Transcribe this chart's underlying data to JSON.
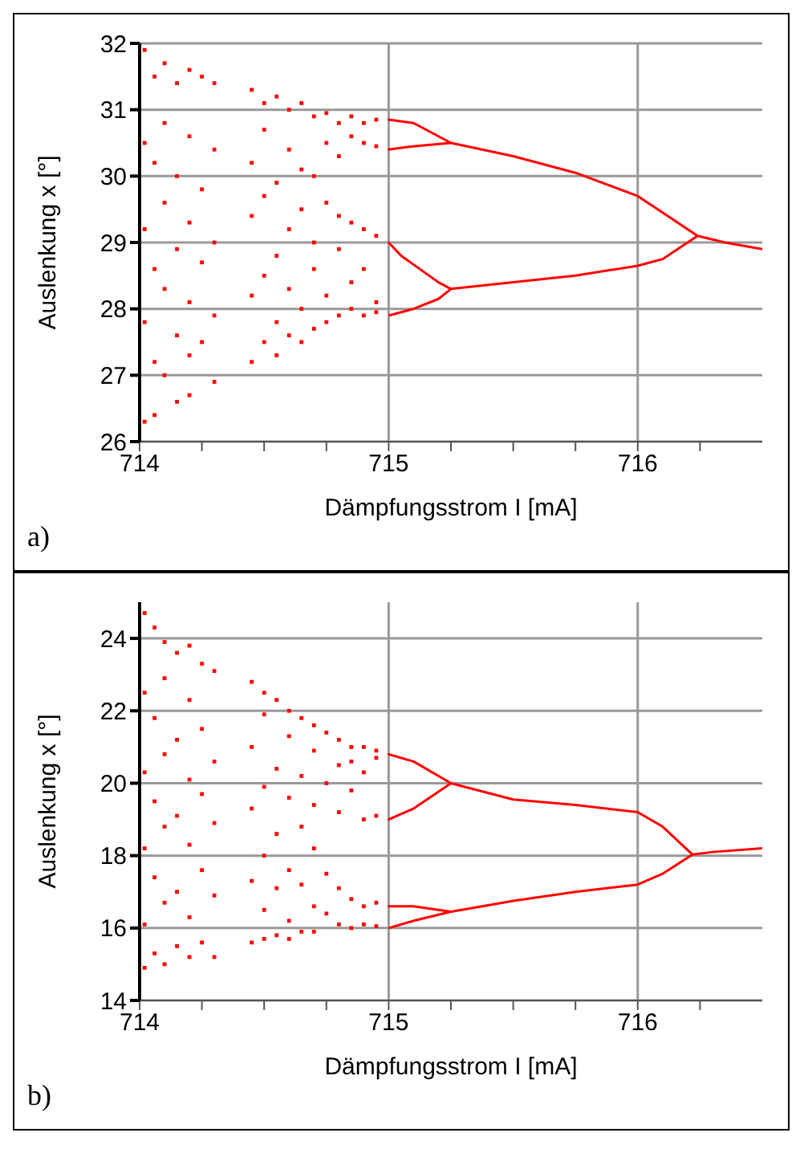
{
  "chart_data": [
    {
      "type": "scatter",
      "xlabel": "Dämpfungsstrom I [mA]",
      "ylabel": "Auslenkung x [°]",
      "annotations": [
        "a)"
      ],
      "grid": true,
      "xlim": [
        714,
        716.5
      ],
      "xticks": [
        714,
        {
          "value": 714.25,
          "label": null
        },
        {
          "value": 714.5,
          "label": null
        },
        {
          "value": 714.75,
          "label": null
        },
        715,
        {
          "value": 715.25,
          "label": null
        },
        {
          "value": 715.5,
          "label": null
        },
        {
          "value": 715.75,
          "label": null
        },
        716,
        {
          "value": 716.25,
          "label": null
        }
      ],
      "ylim": [
        26,
        32
      ],
      "yticks": [
        26,
        27,
        28,
        29,
        30,
        31,
        32
      ],
      "series": [
        {
          "marker": "square",
          "color": "#ff0000",
          "x": [
            714.02,
            714.02,
            714.02,
            714.02,
            714.02,
            714.06,
            714.06,
            714.06,
            714.06,
            714.06,
            714.1,
            714.1,
            714.1,
            714.1,
            714.1,
            714.15,
            714.15,
            714.15,
            714.15,
            714.15,
            714.2,
            714.2,
            714.2,
            714.2,
            714.2,
            714.2,
            714.25,
            714.25,
            714.25,
            714.25,
            714.3,
            714.3,
            714.3,
            714.3,
            714.3,
            714.45,
            714.45,
            714.45,
            714.45,
            714.45,
            714.5,
            714.5,
            714.5,
            714.5,
            714.5,
            714.55,
            714.55,
            714.55,
            714.55,
            714.55,
            714.6,
            714.6,
            714.6,
            714.6,
            714.6,
            714.65,
            714.65,
            714.65,
            714.65,
            714.65,
            714.7,
            714.7,
            714.7,
            714.7,
            714.7,
            714.75,
            714.75,
            714.75,
            714.75,
            714.75,
            714.8,
            714.8,
            714.8,
            714.8,
            714.8,
            714.85,
            714.85,
            714.85,
            714.85,
            714.85,
            714.9,
            714.9,
            714.9,
            714.9,
            714.9,
            714.95,
            714.95,
            714.95,
            714.95,
            714.95
          ],
          "values": [
            31.9,
            30.5,
            29.2,
            27.8,
            26.3,
            31.5,
            30.2,
            28.6,
            27.2,
            26.4,
            31.7,
            30.8,
            29.6,
            28.3,
            27.0,
            31.4,
            30.0,
            28.9,
            27.6,
            26.6,
            31.6,
            30.6,
            29.3,
            28.1,
            27.3,
            26.7,
            31.5,
            29.8,
            28.7,
            27.5,
            31.4,
            30.4,
            29.0,
            27.9,
            26.9,
            31.3,
            30.2,
            29.4,
            28.2,
            27.2,
            31.1,
            30.7,
            29.7,
            28.5,
            27.5,
            31.2,
            29.9,
            28.8,
            27.8,
            27.3,
            31.0,
            30.4,
            29.2,
            28.3,
            27.6,
            31.1,
            30.1,
            29.5,
            28.0,
            27.5,
            30.9,
            30.0,
            29.0,
            28.6,
            27.7,
            30.95,
            30.5,
            29.6,
            28.2,
            27.8,
            30.8,
            30.3,
            29.4,
            28.9,
            27.9,
            30.9,
            30.6,
            29.3,
            28.4,
            28.0,
            30.8,
            30.5,
            29.2,
            28.6,
            27.9,
            30.85,
            30.45,
            29.1,
            28.1,
            27.95
          ]
        },
        {
          "type": "line",
          "marker": "none",
          "color": "#ff0000",
          "x": [
            716.5,
            716.35,
            716.24,
            716.1,
            716.0,
            715.75,
            715.5,
            715.25,
            715.1,
            715.0,
            715.1,
            715.25,
            715.1,
            715.0,
            715.1,
            715.25,
            715.5,
            715.75,
            716.0,
            716.1,
            716.24,
            716.1,
            716.0,
            715.75,
            715.5,
            715.25,
            715.2,
            715.05,
            715.0,
            715.05,
            715.2,
            715.25,
            715.2,
            715.1,
            715.0
          ],
          "values": [
            28.9,
            29.0,
            29.1,
            29.45,
            29.7,
            30.05,
            30.3,
            30.5,
            30.8,
            30.85,
            30.8,
            30.5,
            30.45,
            30.4,
            30.45,
            30.5,
            30.3,
            30.05,
            29.7,
            29.45,
            29.1,
            28.75,
            28.65,
            28.5,
            28.4,
            28.3,
            28.4,
            28.8,
            29.0,
            28.8,
            28.4,
            28.3,
            28.15,
            28.0,
            27.9
          ]
        }
      ]
    },
    {
      "type": "scatter",
      "xlabel": "Dämpfungsstrom I [mA]",
      "ylabel": "Auslenkung x [°]",
      "annotations": [
        "b)"
      ],
      "grid": true,
      "xlim": [
        714,
        716.5
      ],
      "xticks": [
        714,
        {
          "value": 714.25,
          "label": null
        },
        {
          "value": 714.5,
          "label": null
        },
        {
          "value": 714.75,
          "label": null
        },
        715,
        {
          "value": 715.25,
          "label": null
        },
        {
          "value": 715.5,
          "label": null
        },
        {
          "value": 715.75,
          "label": null
        },
        716,
        {
          "value": 716.25,
          "label": null
        }
      ],
      "ylim": [
        14,
        25
      ],
      "yticks": [
        14,
        16,
        18,
        20,
        22,
        24
      ],
      "series": [
        {
          "marker": "square",
          "color": "#ff0000",
          "x": [
            714.02,
            714.02,
            714.02,
            714.02,
            714.02,
            714.02,
            714.06,
            714.06,
            714.06,
            714.06,
            714.06,
            714.1,
            714.1,
            714.1,
            714.1,
            714.1,
            714.1,
            714.15,
            714.15,
            714.15,
            714.15,
            714.15,
            714.2,
            714.2,
            714.2,
            714.2,
            714.2,
            714.2,
            714.25,
            714.25,
            714.25,
            714.25,
            714.25,
            714.3,
            714.3,
            714.3,
            714.3,
            714.3,
            714.45,
            714.45,
            714.45,
            714.45,
            714.45,
            714.5,
            714.5,
            714.5,
            714.5,
            714.5,
            714.5,
            714.55,
            714.55,
            714.55,
            714.55,
            714.55,
            714.6,
            714.6,
            714.6,
            714.6,
            714.6,
            714.6,
            714.65,
            714.65,
            714.65,
            714.65,
            714.65,
            714.7,
            714.7,
            714.7,
            714.7,
            714.7,
            714.7,
            714.75,
            714.75,
            714.75,
            714.75,
            714.8,
            714.8,
            714.8,
            714.8,
            714.8,
            714.85,
            714.85,
            714.85,
            714.85,
            714.85,
            714.9,
            714.9,
            714.9,
            714.9,
            714.9,
            714.95,
            714.95,
            714.95,
            714.95,
            714.95
          ],
          "values": [
            24.7,
            22.5,
            20.3,
            18.2,
            16.1,
            14.9,
            24.3,
            21.8,
            19.5,
            17.4,
            15.3,
            23.9,
            22.9,
            20.8,
            18.8,
            16.7,
            15.0,
            23.6,
            21.2,
            19.1,
            17.0,
            15.5,
            23.8,
            22.3,
            20.1,
            18.3,
            16.3,
            15.2,
            23.3,
            21.5,
            19.7,
            17.6,
            15.6,
            23.1,
            20.6,
            18.9,
            16.9,
            15.2,
            22.8,
            21.0,
            19.3,
            17.3,
            15.6,
            22.5,
            21.9,
            19.9,
            18.0,
            16.5,
            15.7,
            22.3,
            20.4,
            18.6,
            17.1,
            15.8,
            22.0,
            21.3,
            19.6,
            17.6,
            16.2,
            15.7,
            21.8,
            20.2,
            18.8,
            17.2,
            15.9,
            21.6,
            20.9,
            19.4,
            18.2,
            16.6,
            15.9,
            21.4,
            20.0,
            17.5,
            16.4,
            21.2,
            20.5,
            19.2,
            17.1,
            16.1,
            21.0,
            20.6,
            19.8,
            16.8,
            16.0,
            21.0,
            20.3,
            19.0,
            16.6,
            16.1,
            20.9,
            20.7,
            19.1,
            16.7,
            16.05
          ]
        },
        {
          "type": "line",
          "marker": "none",
          "color": "#ff0000",
          "x": [
            716.5,
            716.3,
            716.22,
            716.1,
            716.0,
            715.75,
            715.5,
            715.25,
            715.1,
            715.0,
            715.1,
            715.25,
            715.1,
            715.0,
            715.1,
            715.25,
            715.5,
            715.75,
            716.0,
            716.1,
            716.22,
            716.1,
            716.0,
            715.75,
            715.5,
            715.25,
            715.1,
            715.0,
            715.1,
            715.25,
            715.1,
            715.0
          ],
          "values": [
            18.2,
            18.1,
            18.03,
            18.8,
            19.2,
            19.4,
            19.55,
            20.0,
            20.6,
            20.8,
            20.6,
            20.0,
            19.3,
            19.0,
            19.3,
            20.0,
            19.55,
            19.4,
            19.2,
            18.8,
            18.03,
            17.5,
            17.2,
            17.0,
            16.75,
            16.45,
            16.6,
            16.6,
            16.6,
            16.45,
            16.2,
            16.0
          ]
        }
      ]
    }
  ]
}
